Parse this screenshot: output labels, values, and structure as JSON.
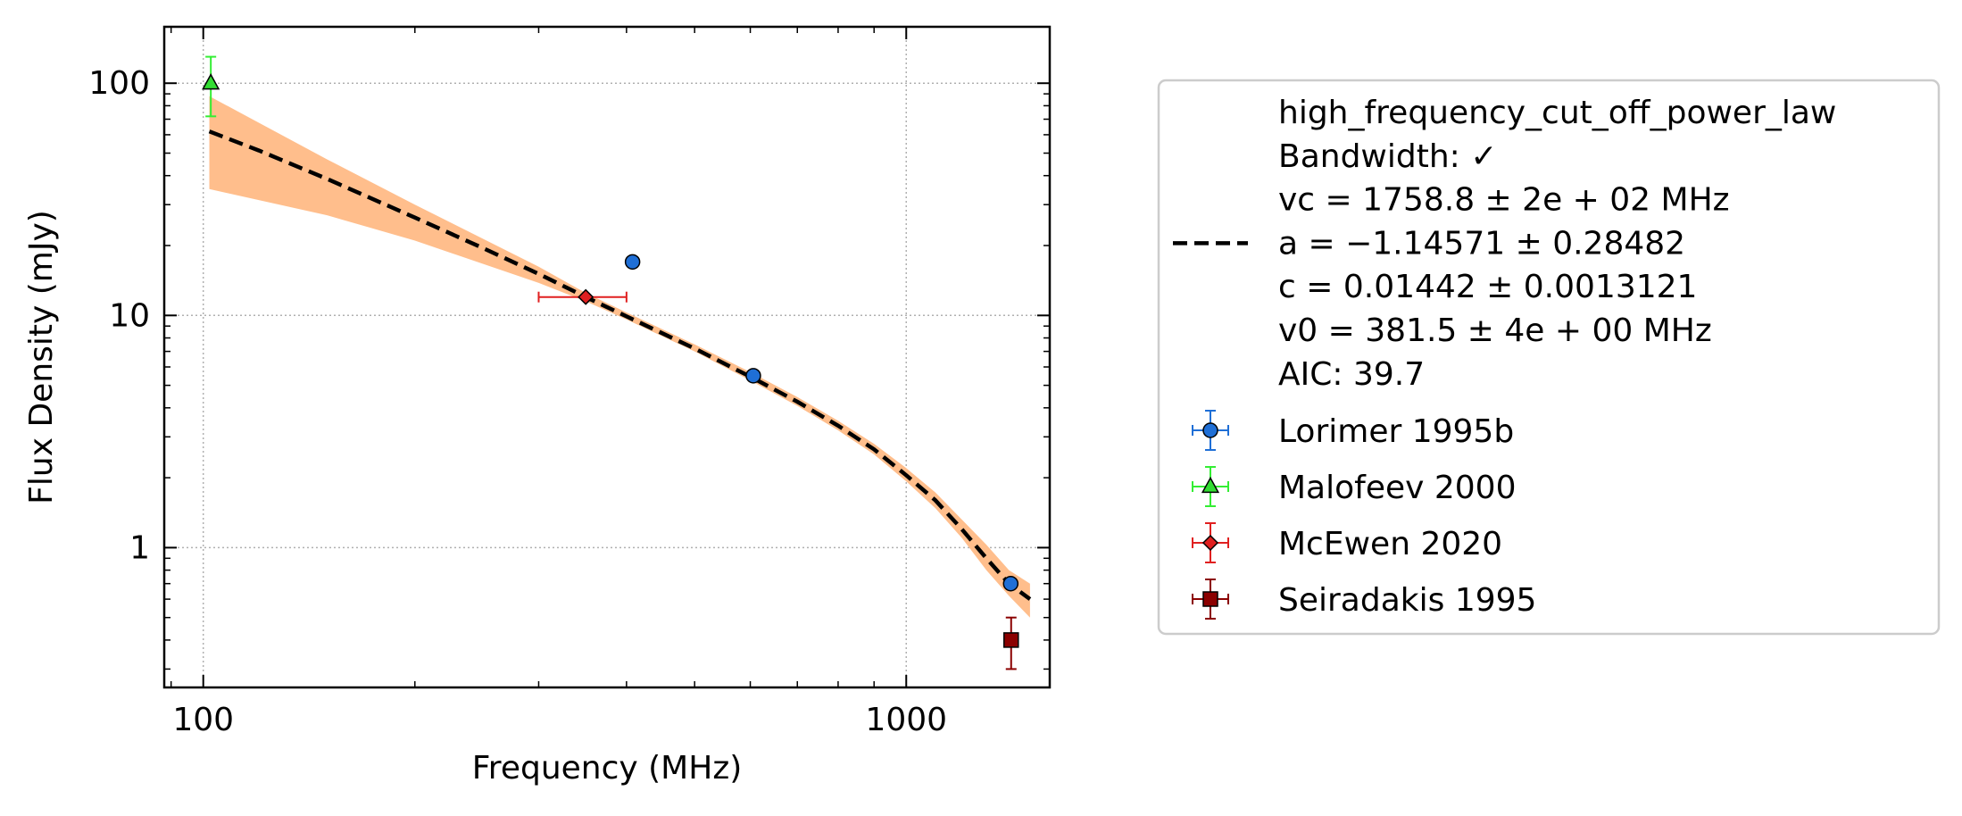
{
  "chart_data": {
    "type": "scatter",
    "xlabel": "Frequency (MHz)",
    "ylabel": "Flux Density (mJy)",
    "xscale": "log",
    "yscale": "log",
    "xlim": [
      88,
      1600
    ],
    "ylim": [
      0.25,
      175
    ],
    "xticks": [
      {
        "value": 100,
        "label": "100"
      },
      {
        "value": 1000,
        "label": "1000"
      }
    ],
    "yticks": [
      {
        "value": 1,
        "label": "1"
      },
      {
        "value": 10,
        "label": "10"
      },
      {
        "value": 100,
        "label": "100"
      }
    ],
    "grid": true,
    "legend_position": "outside-right",
    "fit": {
      "model": "high_frequency_cut_off_power_law",
      "line_style": "dashed",
      "line_color": "#000000",
      "band_color": "#ffbe8c",
      "legend_lines": [
        "high_frequency_cut_off_power_law",
        "Bandwidth: ✓",
        "vc = 1758.8 ± 2e + 02 MHz",
        "a = −1.14571 ± 0.28482",
        "c = 0.01442 ± 0.0013121",
        "v0 = 381.5 ± 4e + 00 MHz",
        "AIC: 39.7"
      ],
      "curve": {
        "x": [
          102,
          120,
          150,
          200,
          250,
          300,
          350,
          400,
          500,
          600,
          700,
          800,
          900,
          1000,
          1100,
          1200,
          1300,
          1400,
          1500
        ],
        "y": [
          62,
          51.3,
          38.7,
          26.4,
          19.5,
          15.1,
          12.0,
          9.9,
          7.2,
          5.45,
          4.25,
          3.35,
          2.65,
          2.05,
          1.6,
          1.2,
          0.9,
          0.7,
          0.6
        ]
      },
      "band": {
        "x": [
          102,
          150,
          200,
          300,
          350,
          400,
          500,
          600,
          700,
          800,
          900,
          1000,
          1100,
          1200,
          1300,
          1400,
          1500
        ],
        "upper": [
          88,
          47,
          30,
          16.2,
          12.5,
          10.3,
          7.5,
          5.7,
          4.45,
          3.52,
          2.8,
          2.2,
          1.73,
          1.32,
          1.03,
          0.8,
          0.7
        ],
        "lower": [
          35,
          27,
          21,
          13.8,
          11.5,
          9.6,
          7.0,
          5.25,
          4.08,
          3.2,
          2.52,
          1.93,
          1.48,
          1.1,
          0.8,
          0.62,
          0.5
        ]
      }
    },
    "series": [
      {
        "name": "Lorimer 1995b",
        "marker": "circle",
        "color": "#1f6fd6",
        "ecolor": "#1f6fd6",
        "points": [
          {
            "x": 408,
            "y": 17,
            "yerr": 0
          },
          {
            "x": 606,
            "y": 5.5,
            "yerr": 0
          },
          {
            "x": 1408,
            "y": 0.7,
            "yerr": 0
          }
        ]
      },
      {
        "name": "Malofeev 2000",
        "marker": "triangle",
        "color": "#33dd33",
        "ecolor": "#33ee33",
        "points": [
          {
            "x": 102.5,
            "y": 100,
            "yerr_low": 28,
            "yerr_high": 30
          }
        ]
      },
      {
        "name": "McEwen 2020",
        "marker": "diamond",
        "color": "#e02020",
        "ecolor": "#e02020",
        "points": [
          {
            "x": 350,
            "y": 12,
            "xerr_low": 50,
            "xerr_high": 50
          }
        ]
      },
      {
        "name": "Seiradakis 1995",
        "marker": "square",
        "color": "#8b0000",
        "ecolor": "#8b0000",
        "points": [
          {
            "x": 1410,
            "y": 0.4,
            "yerr_low": 0.1,
            "yerr_high": 0.1
          }
        ]
      }
    ]
  }
}
